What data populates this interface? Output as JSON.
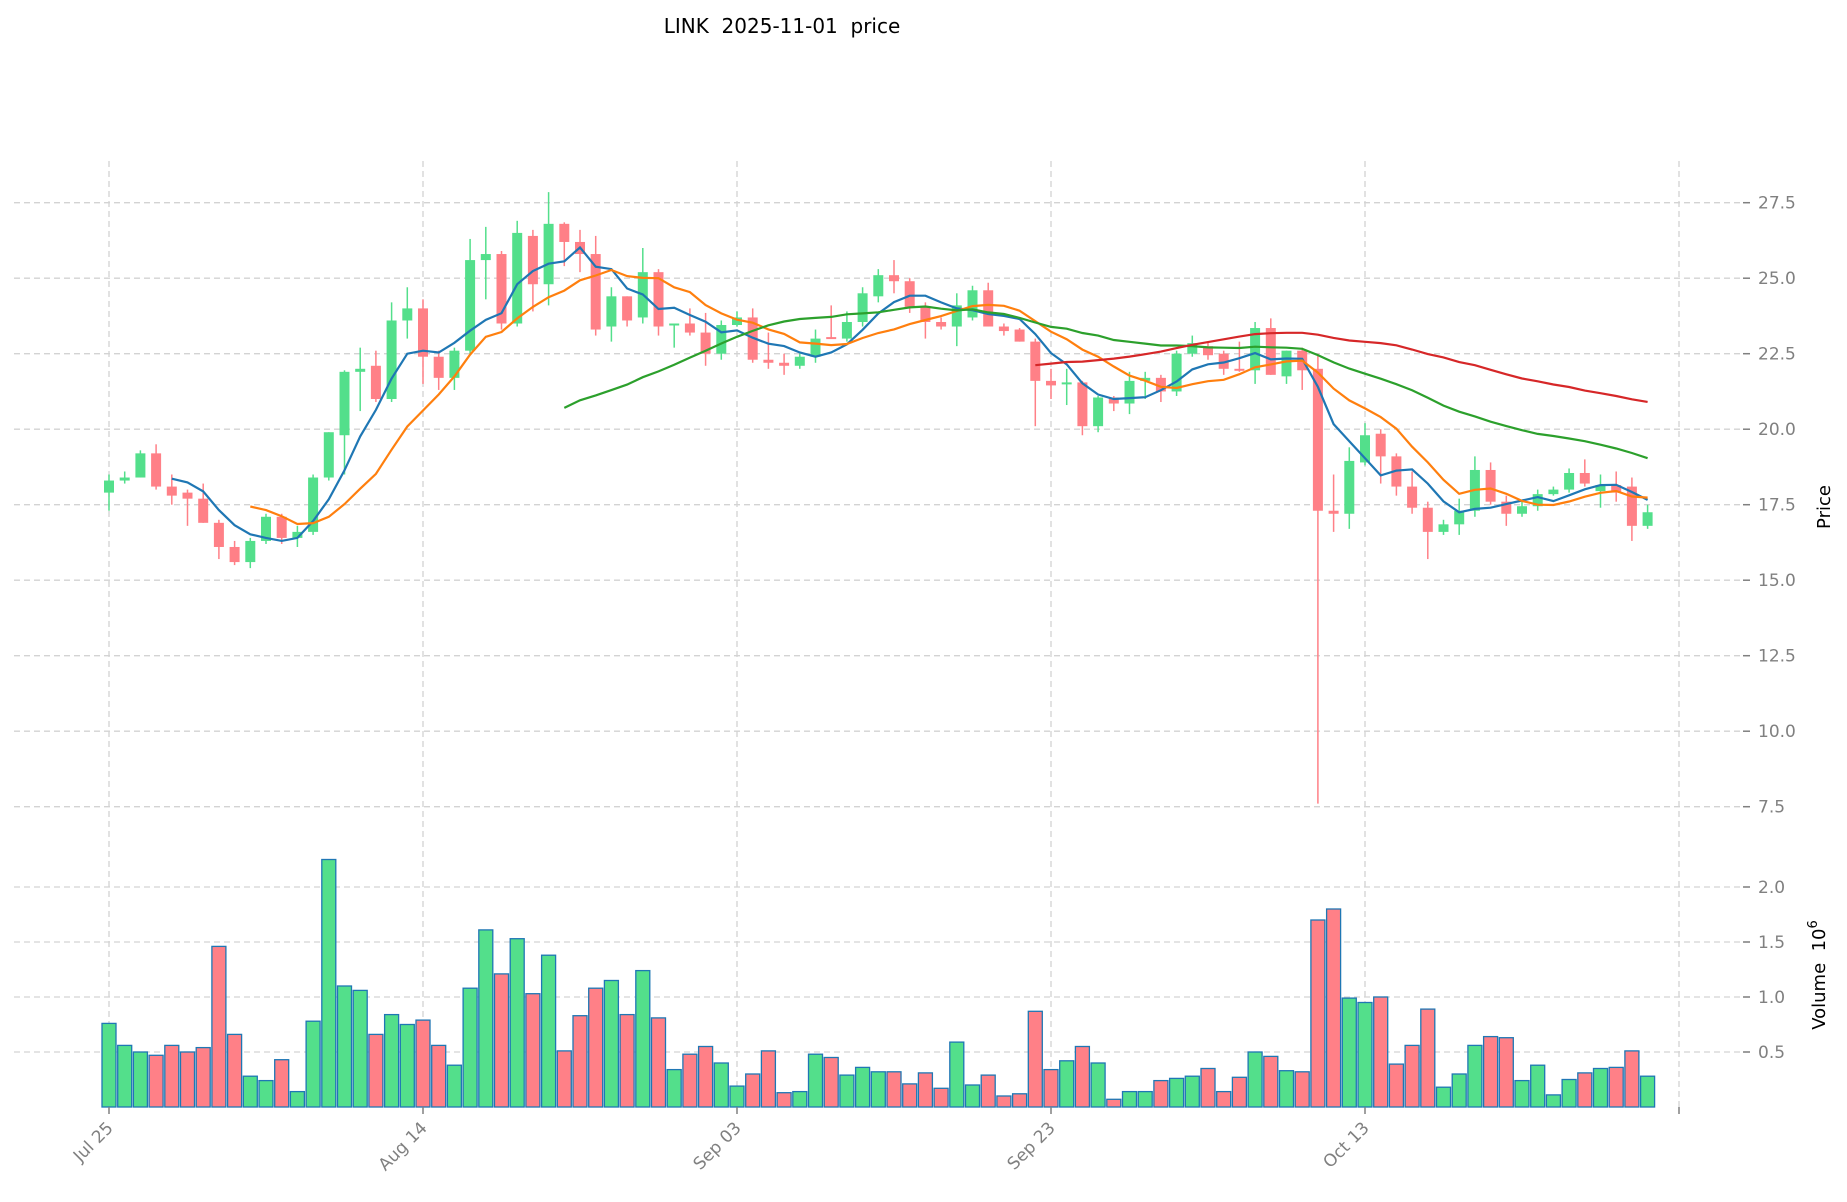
{
  "chart_data": {
    "type": "candlestick",
    "title": "LINK  2025-11-01  price",
    "ylabel": "Price",
    "volume_label": "Volume  10",
    "volume_exponent": "6",
    "start_date": "2025-07-25",
    "ylim": [
      6.7,
      28.9
    ],
    "volume_ylim": [
      0,
      2.52
    ],
    "grid": true,
    "x_ticks": [
      {
        "index": 0,
        "label": "Jul 25"
      },
      {
        "index": 20,
        "label": "Aug 14"
      },
      {
        "index": 40,
        "label": "Sep 03"
      },
      {
        "index": 60,
        "label": "Sep 23"
      },
      {
        "index": 80,
        "label": "Oct 13"
      },
      {
        "index": 100,
        "label": ""
      }
    ],
    "y_ticks": [
      {
        "value": 7.5,
        "label": "7.5"
      },
      {
        "value": 10.0,
        "label": "10.0"
      },
      {
        "value": 12.5,
        "label": "12.5"
      },
      {
        "value": 15.0,
        "label": "15.0"
      },
      {
        "value": 17.5,
        "label": "17.5"
      },
      {
        "value": 20.0,
        "label": "20.0"
      },
      {
        "value": 22.5,
        "label": "22.5"
      },
      {
        "value": 25.0,
        "label": "25.0"
      },
      {
        "value": 27.5,
        "label": "27.5"
      }
    ],
    "volume_ticks": [
      {
        "value": 0.5,
        "label": "0.5"
      },
      {
        "value": 1.0,
        "label": "1.0"
      },
      {
        "value": 1.5,
        "label": "1.5"
      },
      {
        "value": 2.0,
        "label": "2.0"
      }
    ],
    "moving_averages": [
      {
        "period": 5,
        "color": "#1f77b4"
      },
      {
        "period": 10,
        "color": "#ff7f0e"
      },
      {
        "period": 30,
        "color": "#2ca02c"
      },
      {
        "period": 60,
        "color": "#d62728"
      }
    ],
    "colors": {
      "up": "#53df8b",
      "down": "#ff8087",
      "volume_edge": "#1f77b4",
      "grid": "#d3d3d3"
    },
    "ohlc": [
      [
        17.9,
        18.5,
        17.3,
        18.3
      ],
      [
        18.3,
        18.6,
        18.2,
        18.4
      ],
      [
        18.4,
        19.3,
        18.4,
        19.2
      ],
      [
        19.2,
        19.5,
        18.0,
        18.1
      ],
      [
        18.1,
        18.5,
        17.5,
        17.8
      ],
      [
        17.9,
        18.0,
        16.8,
        17.7
      ],
      [
        17.7,
        18.2,
        16.9,
        16.9
      ],
      [
        16.9,
        17.0,
        15.7,
        16.1
      ],
      [
        16.1,
        16.3,
        15.5,
        15.6
      ],
      [
        15.6,
        16.4,
        15.4,
        16.3
      ],
      [
        16.3,
        17.2,
        16.2,
        17.1
      ],
      [
        17.1,
        17.2,
        16.2,
        16.4
      ],
      [
        16.4,
        16.8,
        16.1,
        16.6
      ],
      [
        16.6,
        18.5,
        16.5,
        18.4
      ],
      [
        18.4,
        19.9,
        18.3,
        19.9
      ],
      [
        19.8,
        21.95,
        18.5,
        21.9
      ],
      [
        21.9,
        22.7,
        20.6,
        22.0
      ],
      [
        22.1,
        22.6,
        20.9,
        21.0
      ],
      [
        21.0,
        24.2,
        20.9,
        23.6
      ],
      [
        23.6,
        24.7,
        23.0,
        24.0
      ],
      [
        24.0,
        24.3,
        21.5,
        22.4
      ],
      [
        22.4,
        22.6,
        21.3,
        21.7
      ],
      [
        21.7,
        22.7,
        21.3,
        22.6
      ],
      [
        22.6,
        26.3,
        22.5,
        25.6
      ],
      [
        25.6,
        26.7,
        24.3,
        25.8
      ],
      [
        25.8,
        25.9,
        23.3,
        23.5
      ],
      [
        23.5,
        26.9,
        23.4,
        26.5
      ],
      [
        26.4,
        26.6,
        23.9,
        24.8
      ],
      [
        24.8,
        27.85,
        24.1,
        26.8
      ],
      [
        26.8,
        26.85,
        25.4,
        26.2
      ],
      [
        26.2,
        26.6,
        25.2,
        25.8
      ],
      [
        25.8,
        26.4,
        23.1,
        23.3
      ],
      [
        23.4,
        24.7,
        22.9,
        24.4
      ],
      [
        24.4,
        24.4,
        23.4,
        23.6
      ],
      [
        23.7,
        26.0,
        23.5,
        25.2
      ],
      [
        25.2,
        25.3,
        23.1,
        23.4
      ],
      [
        23.45,
        23.5,
        22.7,
        23.5
      ],
      [
        23.5,
        24.0,
        23.1,
        23.2
      ],
      [
        23.2,
        23.85,
        22.1,
        22.5
      ],
      [
        22.5,
        23.6,
        22.3,
        23.45
      ],
      [
        23.45,
        23.9,
        23.4,
        23.7
      ],
      [
        23.7,
        24.0,
        22.2,
        22.3
      ],
      [
        22.3,
        23.2,
        22.0,
        22.2
      ],
      [
        22.2,
        22.5,
        21.8,
        22.1
      ],
      [
        22.1,
        22.5,
        22.0,
        22.4
      ],
      [
        22.4,
        23.3,
        22.2,
        23.0
      ],
      [
        23.05,
        24.1,
        23.0,
        23.0
      ],
      [
        23.0,
        23.9,
        22.9,
        23.55
      ],
      [
        23.55,
        24.7,
        23.4,
        24.5
      ],
      [
        24.4,
        25.3,
        24.2,
        25.1
      ],
      [
        25.1,
        25.6,
        24.5,
        24.9
      ],
      [
        24.9,
        25.0,
        23.85,
        24.05
      ],
      [
        24.05,
        24.2,
        23.0,
        23.55
      ],
      [
        23.55,
        23.7,
        23.3,
        23.4
      ],
      [
        23.4,
        24.5,
        22.75,
        24.1
      ],
      [
        23.7,
        24.75,
        23.6,
        24.6
      ],
      [
        24.6,
        24.85,
        23.4,
        23.4
      ],
      [
        23.4,
        23.5,
        23.1,
        23.25
      ],
      [
        23.3,
        23.35,
        22.9,
        22.9
      ],
      [
        22.9,
        23.0,
        20.1,
        21.6
      ],
      [
        21.6,
        22.0,
        21.0,
        21.45
      ],
      [
        21.5,
        22.0,
        20.8,
        21.55
      ],
      [
        21.55,
        21.6,
        19.8,
        20.1
      ],
      [
        20.1,
        21.1,
        19.9,
        21.05
      ],
      [
        21.05,
        21.1,
        20.6,
        20.85
      ],
      [
        20.85,
        21.9,
        20.5,
        21.6
      ],
      [
        21.6,
        21.9,
        21.0,
        21.7
      ],
      [
        21.7,
        21.8,
        20.9,
        21.25
      ],
      [
        21.25,
        22.6,
        21.1,
        22.5
      ],
      [
        22.5,
        23.1,
        22.4,
        22.85
      ],
      [
        22.75,
        22.9,
        22.3,
        22.45
      ],
      [
        22.5,
        22.6,
        21.8,
        22.0
      ],
      [
        22.0,
        22.9,
        21.9,
        21.95
      ],
      [
        21.95,
        23.55,
        21.5,
        23.35
      ],
      [
        23.35,
        23.67,
        21.8,
        21.8
      ],
      [
        21.75,
        22.6,
        21.5,
        22.6
      ],
      [
        22.6,
        22.7,
        21.3,
        21.95
      ],
      [
        22.0,
        22.5,
        7.6,
        17.3
      ],
      [
        17.3,
        18.5,
        16.6,
        17.2
      ],
      [
        17.2,
        19.4,
        16.7,
        18.95
      ],
      [
        18.9,
        20.2,
        18.8,
        19.8
      ],
      [
        19.85,
        20.0,
        18.2,
        19.1
      ],
      [
        19.1,
        19.2,
        17.8,
        18.1
      ],
      [
        18.1,
        18.6,
        17.2,
        17.4
      ],
      [
        17.4,
        17.6,
        15.7,
        16.6
      ],
      [
        16.6,
        17.0,
        16.5,
        16.85
      ],
      [
        16.85,
        17.7,
        16.5,
        17.3
      ],
      [
        17.3,
        19.1,
        17.1,
        18.65
      ],
      [
        18.65,
        18.9,
        17.5,
        17.6
      ],
      [
        17.6,
        17.8,
        16.8,
        17.2
      ],
      [
        17.2,
        17.6,
        17.1,
        17.45
      ],
      [
        17.45,
        18.0,
        17.3,
        17.85
      ],
      [
        17.85,
        18.1,
        17.8,
        18.0
      ],
      [
        18.0,
        18.7,
        17.9,
        18.55
      ],
      [
        18.55,
        19.0,
        18.1,
        18.2
      ],
      [
        17.95,
        18.5,
        17.4,
        18.15
      ],
      [
        18.15,
        18.6,
        17.6,
        17.9
      ],
      [
        18.1,
        18.4,
        16.3,
        16.8
      ],
      [
        16.8,
        17.5,
        16.7,
        17.25
      ]
    ],
    "volume": [
      0.76,
      0.56,
      0.5,
      0.47,
      0.56,
      0.5,
      0.54,
      1.46,
      0.66,
      0.28,
      0.24,
      0.43,
      0.14,
      0.78,
      2.25,
      1.1,
      1.06,
      0.66,
      0.84,
      0.75,
      0.79,
      0.56,
      0.38,
      1.08,
      1.61,
      1.21,
      1.53,
      1.03,
      1.38,
      0.51,
      0.83,
      1.08,
      1.15,
      0.84,
      1.24,
      0.81,
      0.34,
      0.48,
      0.55,
      0.4,
      0.19,
      0.3,
      0.51,
      0.13,
      0.14,
      0.48,
      0.45,
      0.29,
      0.36,
      0.32,
      0.32,
      0.21,
      0.31,
      0.17,
      0.59,
      0.2,
      0.29,
      0.1,
      0.12,
      0.87,
      0.34,
      0.42,
      0.55,
      0.4,
      0.07,
      0.14,
      0.14,
      0.24,
      0.26,
      0.28,
      0.35,
      0.14,
      0.27,
      0.5,
      0.46,
      0.33,
      0.32,
      1.7,
      1.8,
      0.99,
      0.95,
      1.0,
      0.39,
      0.56,
      0.89,
      0.18,
      0.3,
      0.56,
      0.64,
      0.63,
      0.24,
      0.38,
      0.11,
      0.25,
      0.31,
      0.35,
      0.36,
      0.51,
      0.28
    ]
  }
}
